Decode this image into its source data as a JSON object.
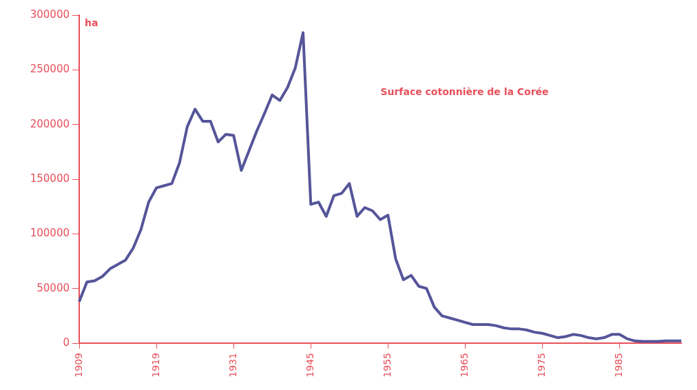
{
  "chart_data": {
    "type": "line",
    "title": "Surface cotonnière de la Corée",
    "ylabel": "ha",
    "categories": [
      "1909",
      null,
      null,
      null,
      null,
      null,
      null,
      null,
      null,
      null,
      "1919",
      null,
      null,
      null,
      null,
      null,
      null,
      null,
      null,
      null,
      "1931",
      null,
      null,
      null,
      null,
      null,
      null,
      null,
      null,
      null,
      "1945",
      null,
      null,
      null,
      null,
      null,
      null,
      null,
      null,
      null,
      "1955",
      null,
      null,
      null,
      null,
      null,
      null,
      null,
      null,
      null,
      "1965",
      null,
      null,
      null,
      null,
      null,
      null,
      null,
      null,
      null,
      "1975",
      null,
      null,
      null,
      null,
      null,
      null,
      null,
      null,
      null,
      "1985",
      null,
      null,
      null,
      null,
      null,
      null,
      null,
      null
    ],
    "series": [
      {
        "color": "#55559a",
        "values": [
          38000,
          56000,
          57000,
          61000,
          68000,
          72000,
          76000,
          87000,
          104000,
          129000,
          142000,
          144000,
          146000,
          165000,
          198000,
          214000,
          203000,
          203000,
          184000,
          191000,
          190000,
          158000,
          176000,
          194000,
          210000,
          227000,
          222000,
          234000,
          252000,
          284000,
          127000,
          129000,
          116000,
          135000,
          137000,
          146000,
          116000,
          124000,
          121000,
          113000,
          117000,
          77000,
          58000,
          62000,
          52000,
          50000,
          33000,
          25000,
          23000,
          21000,
          19000,
          17000,
          17000,
          17000,
          16000,
          14000,
          13000,
          13000,
          12000,
          10000,
          9000,
          7000,
          5000,
          6000,
          8000,
          7000,
          5000,
          4000,
          5000,
          8000,
          8000,
          4000,
          2000,
          1500,
          1500,
          1500,
          2000,
          2000,
          2000
        ]
      }
    ],
    "ylim": [
      0,
      300000
    ],
    "yticks": [
      0,
      50000,
      100000,
      150000,
      200000,
      250000,
      300000
    ],
    "grid": false,
    "legend": false,
    "marker": "none",
    "line_style": "solid"
  }
}
